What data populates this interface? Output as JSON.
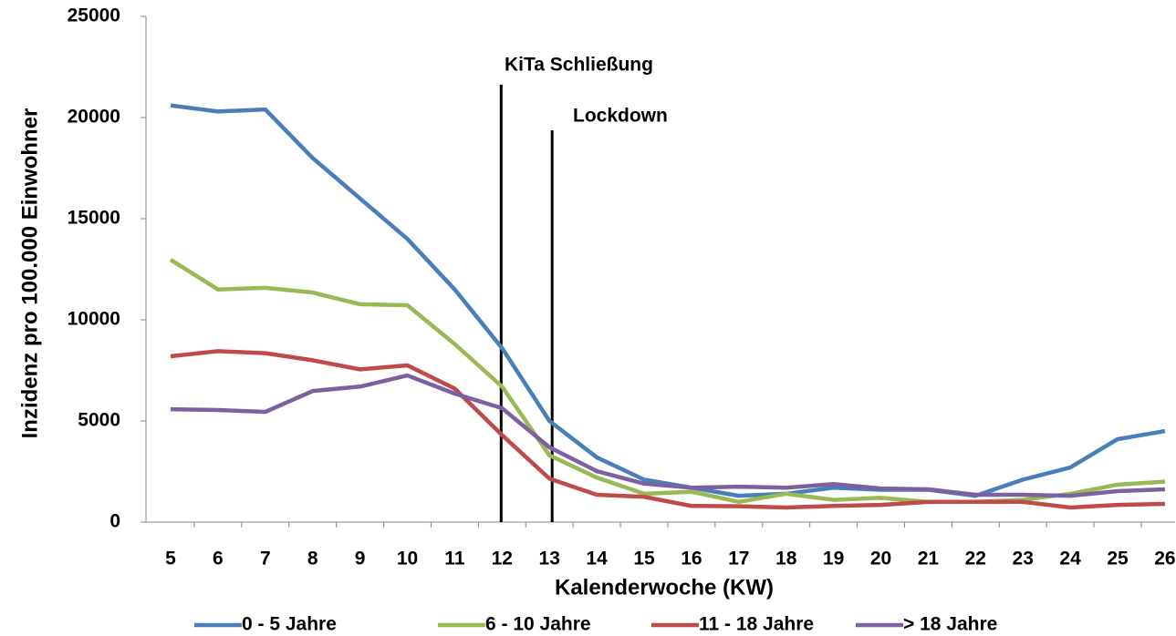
{
  "chart_data": {
    "type": "line",
    "y_label": "Inzidenz pro 100.000 Einwohner",
    "x_label": "Kalenderwoche (KW)",
    "categories": [
      "5",
      "6",
      "7",
      "8",
      "9",
      "10",
      "11",
      "12",
      "13",
      "14",
      "15",
      "16",
      "17",
      "18",
      "19",
      "20",
      "21",
      "22",
      "23",
      "24",
      "25",
      "26"
    ],
    "series": [
      {
        "name": "0 - 5 Jahre",
        "color": "#4a7ebb",
        "values": [
          20600,
          20300,
          20400,
          18000,
          16000,
          14000,
          11500,
          8600,
          5000,
          3200,
          2100,
          1700,
          1300,
          1400,
          1700,
          1600,
          1600,
          1300,
          2100,
          2700,
          4100,
          4500
        ]
      },
      {
        "name": "6 - 10 Jahre",
        "color": "#98b954",
        "values": [
          12970,
          11500,
          11580,
          11350,
          10770,
          10720,
          8800,
          6700,
          3300,
          2200,
          1400,
          1500,
          1000,
          1400,
          1100,
          1200,
          1000,
          1000,
          1100,
          1400,
          1850,
          2000
        ]
      },
      {
        "name": "11 - 18 Jahre",
        "color": "#be4b48",
        "values": [
          8200,
          8450,
          8350,
          8000,
          7550,
          7750,
          6600,
          4300,
          2150,
          1350,
          1250,
          800,
          780,
          720,
          800,
          850,
          1000,
          1000,
          1000,
          720,
          850,
          900
        ]
      },
      {
        "name": "> 18 Jahre",
        "color": "#7d60a0",
        "values": [
          5580,
          5540,
          5450,
          6480,
          6700,
          7250,
          6350,
          5630,
          3700,
          2520,
          1900,
          1700,
          1750,
          1700,
          1880,
          1660,
          1620,
          1350,
          1350,
          1300,
          1530,
          1620
        ]
      }
    ],
    "annotations": [
      {
        "text": "KiTa Schließung",
        "x": "12"
      },
      {
        "text": "Lockdown",
        "x": "13"
      }
    ],
    "ylim": [
      0,
      25000
    ],
    "yticks": [
      0,
      5000,
      10000,
      15000,
      20000,
      25000
    ],
    "grid": false,
    "legend": "bottom"
  }
}
